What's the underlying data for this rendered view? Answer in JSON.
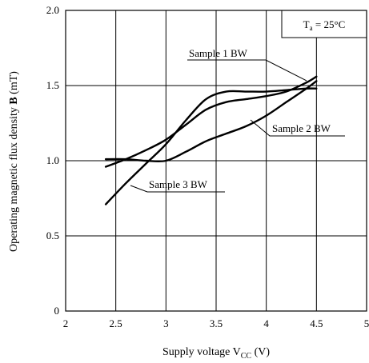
{
  "chart_data": {
    "type": "line",
    "x_tick_labels": [
      "2",
      "2.5",
      "3",
      "3.5",
      "4",
      "4.5",
      "5"
    ],
    "y_tick_labels": [
      "0",
      "0.5",
      "1.0",
      "1.5",
      "2.0"
    ],
    "xlim": [
      2,
      5
    ],
    "ylim": [
      0,
      2
    ],
    "grid": true,
    "xlabel": {
      "text": "Supply voltage  V",
      "sub": "CC",
      "unit": "  (V)"
    },
    "ylabel": {
      "text": "Operating magnetic flux density  ",
      "bold": "B",
      "unit": "  (mT)"
    },
    "condition": {
      "prefix": "T",
      "sub": "a",
      "suffix": " = 25°C"
    },
    "series": [
      {
        "name": "Sample 1  BW",
        "x": [
          2.4,
          2.6,
          2.8,
          3.0,
          3.2,
          3.4,
          3.6,
          3.8,
          4.0,
          4.2,
          4.4,
          4.5
        ],
        "y": [
          0.96,
          1.01,
          1.07,
          1.14,
          1.24,
          1.34,
          1.39,
          1.41,
          1.43,
          1.46,
          1.52,
          1.56
        ]
      },
      {
        "name": "Sample 2  BW",
        "x": [
          2.4,
          2.6,
          2.8,
          3.0,
          3.2,
          3.4,
          3.6,
          3.8,
          4.0,
          4.2,
          4.4,
          4.5
        ],
        "y": [
          1.01,
          1.01,
          1.0,
          1.0,
          1.06,
          1.13,
          1.18,
          1.23,
          1.3,
          1.39,
          1.48,
          1.53
        ]
      },
      {
        "name": "Sample 3  BW",
        "x": [
          2.4,
          2.6,
          2.8,
          3.0,
          3.2,
          3.4,
          3.6,
          3.8,
          4.0,
          4.2,
          4.4,
          4.5
        ],
        "y": [
          0.71,
          0.85,
          0.98,
          1.11,
          1.27,
          1.41,
          1.46,
          1.46,
          1.46,
          1.47,
          1.48,
          1.48
        ]
      }
    ]
  }
}
